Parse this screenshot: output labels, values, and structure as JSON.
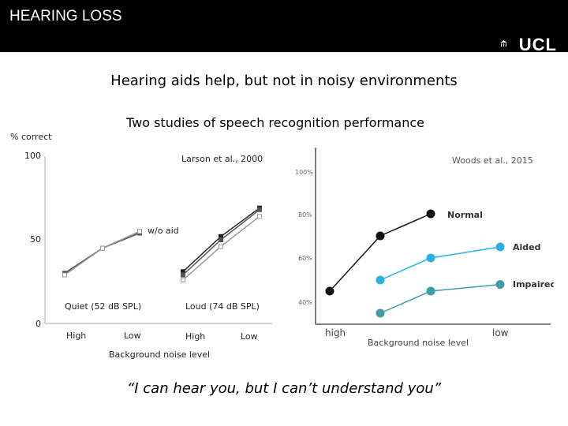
{
  "header": {
    "title": "HEARING LOSS",
    "logo_text": "UCL"
  },
  "slide": {
    "subtitle": "Hearing aids help, but not in noisy environments",
    "studies_title": "Two studies of speech recognition performance",
    "quote": "“I can hear you, but I can’t understand you”"
  },
  "left_chart": {
    "ylabel": "% correct",
    "yticks": [
      "100",
      "50",
      "0"
    ],
    "study_label": "Larson et al., 2000",
    "annotation": "w/o aid",
    "group_quiet": "Quiet (52 dB SPL)",
    "group_loud": "Loud (74 dB SPL)",
    "xt_quiet_high": "High",
    "xt_quiet_low": "Low",
    "xt_loud_high": "High",
    "xt_loud_low": "Low",
    "xlabel": "Background noise level"
  },
  "right_chart": {
    "study_label": "Woods et al., 2015",
    "yticks": [
      "100%",
      "80%",
      "60%",
      "40%"
    ],
    "xt_high": "high",
    "xt_low": "low",
    "xlabel": "Background noise level",
    "legend": [
      "Normal",
      "Aided",
      "Impaired"
    ]
  },
  "chart_data": [
    {
      "type": "line",
      "title": "Larson et al., 2000",
      "ylabel": "% correct",
      "ylim": [
        0,
        100
      ],
      "categories": [
        "Quiet High",
        "Quiet mid",
        "Quiet Low",
        "Loud High",
        "Loud mid",
        "Loud Low"
      ],
      "series": [
        {
          "values": [
            30,
            45,
            55,
            31,
            52,
            69
          ]
        },
        {
          "values": [
            30,
            45,
            54,
            29,
            50,
            68
          ]
        },
        {
          "values": [
            29,
            45,
            55,
            26,
            46,
            64
          ]
        }
      ],
      "annotations": [
        "w/o aid"
      ],
      "colors": [
        "#222222",
        "#555555",
        "#999999"
      ]
    },
    {
      "type": "line",
      "title": "Woods et al., 2015",
      "xlabel": "Background noise level",
      "ylim": [
        35,
        105
      ],
      "categories": [
        "high",
        "2",
        "3",
        "4",
        "low"
      ],
      "series": [
        {
          "name": "Normal",
          "values": [
            45,
            70,
            80,
            null,
            null
          ],
          "color": "#111111"
        },
        {
          "name": "Aided",
          "values": [
            null,
            50,
            60,
            null,
            65
          ],
          "color": "#2ab0e3"
        },
        {
          "name": "Impaired",
          "values": [
            null,
            35,
            45,
            null,
            48
          ],
          "color": "#3d9ca8"
        }
      ]
    }
  ]
}
